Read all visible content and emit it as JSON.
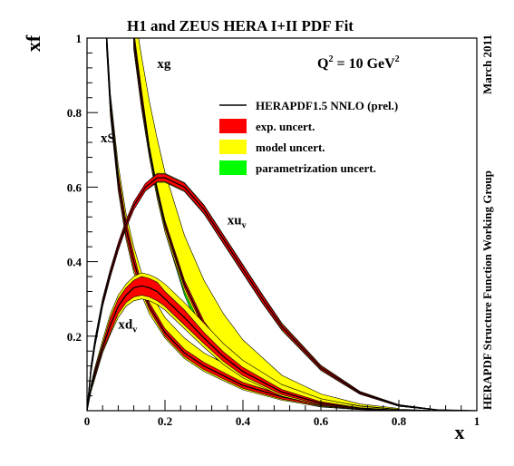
{
  "chart_data": {
    "type": "line",
    "title": "H1 and ZEUS HERA I+II PDF Fit",
    "xlabel": "x",
    "ylabel": "xf",
    "xlim": [
      0,
      1
    ],
    "ylim": [
      0,
      1
    ],
    "x_ticks": [
      "0",
      "0.2",
      "0.4",
      "0.6",
      "0.8",
      "1"
    ],
    "y_ticks": [
      "0.2",
      "0.4",
      "0.6",
      "0.8",
      "1"
    ],
    "grid": false,
    "legend_placement": "top-right",
    "annotations": {
      "q2_main": "Q",
      "q2_sup": "2",
      "q2_rest": " = 10 GeV",
      "q2_sup2": "2",
      "date": "March 2011",
      "group": "HERAPDF Structure Function Working Group"
    },
    "legend": [
      {
        "label": "HERAPDF1.5 NNLO (prel.)",
        "kind": "line",
        "color": "#000000"
      },
      {
        "label": "exp. uncert.",
        "kind": "box",
        "color": "#ff0000"
      },
      {
        "label": "model uncert.",
        "kind": "box",
        "color": "#ffff00"
      },
      {
        "label": "parametrization uncert.",
        "kind": "box",
        "color": "#00ff00"
      }
    ],
    "colors": {
      "exp": "#ff0000",
      "model": "#ffff00",
      "param": "#00ff00",
      "central": "#000000"
    },
    "series": [
      {
        "label_main": "xg",
        "label_sub": "",
        "x": [
          0.12,
          0.14,
          0.16,
          0.18,
          0.2,
          0.25,
          0.3,
          0.35,
          0.4,
          0.5,
          0.6,
          0.7,
          0.8
        ],
        "central": [
          1.0,
          0.84,
          0.7,
          0.59,
          0.5,
          0.34,
          0.23,
          0.16,
          0.11,
          0.05,
          0.02,
          0.007,
          0.002
        ],
        "exp_lo": [
          0.98,
          0.82,
          0.69,
          0.58,
          0.49,
          0.33,
          0.22,
          0.15,
          0.1,
          0.045,
          0.017,
          0.005,
          0.001
        ],
        "exp_hi": [
          1.02,
          0.86,
          0.71,
          0.6,
          0.51,
          0.35,
          0.24,
          0.17,
          0.12,
          0.055,
          0.023,
          0.009,
          0.003
        ],
        "mod_lo": [
          0.97,
          0.81,
          0.68,
          0.57,
          0.48,
          0.32,
          0.21,
          0.14,
          0.095,
          0.042,
          0.015,
          0.004,
          0.001
        ],
        "mod_hi": [
          1.08,
          0.95,
          0.83,
          0.73,
          0.64,
          0.47,
          0.35,
          0.26,
          0.19,
          0.095,
          0.045,
          0.018,
          0.006
        ],
        "par_lo": [
          0.97,
          0.81,
          0.68,
          0.57,
          0.48,
          0.31,
          0.19,
          0.11,
          0.07,
          0.03,
          0.01,
          0.003,
          0.001
        ],
        "par_hi": [
          1.02,
          0.86,
          0.71,
          0.6,
          0.51,
          0.35,
          0.24,
          0.17,
          0.12,
          0.055,
          0.023,
          0.009,
          0.003
        ],
        "label_pos": [
          0.18,
          0.92
        ]
      },
      {
        "label_main": "xS",
        "label_sub": "",
        "x": [
          0.05,
          0.06,
          0.08,
          0.1,
          0.12,
          0.14,
          0.16,
          0.2,
          0.25,
          0.3,
          0.4,
          0.5,
          0.6,
          0.7,
          0.8,
          0.88
        ],
        "central": [
          1.0,
          0.82,
          0.62,
          0.49,
          0.4,
          0.33,
          0.28,
          0.21,
          0.155,
          0.12,
          0.068,
          0.037,
          0.017,
          0.006,
          0.0015,
          0.0003
        ],
        "exp_lo": [
          0.98,
          0.8,
          0.6,
          0.47,
          0.38,
          0.32,
          0.27,
          0.2,
          0.145,
          0.11,
          0.06,
          0.031,
          0.013,
          0.004,
          0.0008,
          0.0001
        ],
        "exp_hi": [
          1.02,
          0.84,
          0.64,
          0.51,
          0.42,
          0.34,
          0.29,
          0.22,
          0.165,
          0.13,
          0.076,
          0.043,
          0.021,
          0.008,
          0.0025,
          0.0006
        ],
        "mod_lo": [
          0.97,
          0.79,
          0.59,
          0.46,
          0.37,
          0.31,
          0.26,
          0.195,
          0.14,
          0.105,
          0.056,
          0.028,
          0.011,
          0.003,
          0.0006,
          0.0001
        ],
        "mod_hi": [
          1.03,
          0.85,
          0.66,
          0.53,
          0.44,
          0.37,
          0.32,
          0.25,
          0.195,
          0.155,
          0.1,
          0.06,
          0.031,
          0.013,
          0.004,
          0.001
        ],
        "par_lo": [
          0.98,
          0.8,
          0.6,
          0.47,
          0.38,
          0.32,
          0.27,
          0.2,
          0.145,
          0.11,
          0.06,
          0.031,
          0.013,
          0.004,
          0.0008,
          0.0001
        ],
        "par_hi": [
          1.02,
          0.84,
          0.64,
          0.51,
          0.42,
          0.34,
          0.29,
          0.22,
          0.165,
          0.13,
          0.076,
          0.043,
          0.021,
          0.008,
          0.0025,
          0.0006
        ],
        "label_pos": [
          0.035,
          0.72
        ]
      },
      {
        "label_main": "xu",
        "label_sub": "v",
        "x": [
          0.0,
          0.01,
          0.02,
          0.04,
          0.06,
          0.08,
          0.1,
          0.12,
          0.15,
          0.18,
          0.2,
          0.25,
          0.3,
          0.35,
          0.4,
          0.45,
          0.5,
          0.6,
          0.7,
          0.8,
          0.9,
          1.0
        ],
        "central": [
          0.0,
          0.11,
          0.18,
          0.29,
          0.37,
          0.44,
          0.5,
          0.55,
          0.6,
          0.625,
          0.625,
          0.6,
          0.54,
          0.46,
          0.38,
          0.3,
          0.225,
          0.115,
          0.048,
          0.014,
          0.002,
          0.0
        ],
        "exp_lo": [
          0.0,
          0.1,
          0.17,
          0.28,
          0.36,
          0.43,
          0.49,
          0.54,
          0.59,
          0.615,
          0.615,
          0.59,
          0.53,
          0.45,
          0.37,
          0.29,
          0.218,
          0.11,
          0.045,
          0.012,
          0.0015,
          0.0
        ],
        "exp_hi": [
          0.0,
          0.12,
          0.19,
          0.3,
          0.38,
          0.45,
          0.51,
          0.56,
          0.61,
          0.635,
          0.635,
          0.61,
          0.55,
          0.47,
          0.39,
          0.31,
          0.232,
          0.12,
          0.051,
          0.016,
          0.0025,
          0.0
        ],
        "mod_lo": [
          0.0,
          0.1,
          0.17,
          0.28,
          0.36,
          0.43,
          0.49,
          0.54,
          0.59,
          0.613,
          0.613,
          0.588,
          0.528,
          0.448,
          0.368,
          0.288,
          0.215,
          0.108,
          0.044,
          0.012,
          0.0015,
          0.0
        ],
        "mod_hi": [
          0.0,
          0.12,
          0.19,
          0.3,
          0.38,
          0.45,
          0.51,
          0.56,
          0.61,
          0.637,
          0.637,
          0.612,
          0.552,
          0.472,
          0.392,
          0.312,
          0.235,
          0.122,
          0.052,
          0.016,
          0.0025,
          0.0
        ],
        "par_lo": [
          0.0,
          0.1,
          0.17,
          0.28,
          0.36,
          0.43,
          0.49,
          0.54,
          0.59,
          0.615,
          0.615,
          0.59,
          0.53,
          0.45,
          0.37,
          0.29,
          0.218,
          0.11,
          0.045,
          0.012,
          0.0015,
          0.0
        ],
        "par_hi": [
          0.0,
          0.12,
          0.19,
          0.3,
          0.38,
          0.45,
          0.51,
          0.56,
          0.61,
          0.635,
          0.635,
          0.61,
          0.55,
          0.47,
          0.39,
          0.31,
          0.232,
          0.12,
          0.051,
          0.016,
          0.0025,
          0.0
        ],
        "label_pos": [
          0.36,
          0.5
        ]
      },
      {
        "label_main": "xd",
        "label_sub": "v",
        "x": [
          0.0,
          0.01,
          0.02,
          0.04,
          0.06,
          0.08,
          0.1,
          0.12,
          0.14,
          0.16,
          0.18,
          0.2,
          0.25,
          0.3,
          0.35,
          0.4,
          0.5,
          0.6,
          0.7,
          0.8
        ],
        "central": [
          0.0,
          0.06,
          0.1,
          0.17,
          0.23,
          0.28,
          0.31,
          0.33,
          0.335,
          0.33,
          0.32,
          0.3,
          0.25,
          0.195,
          0.145,
          0.105,
          0.05,
          0.02,
          0.006,
          0.001
        ],
        "exp_lo": [
          0.0,
          0.055,
          0.09,
          0.16,
          0.21,
          0.26,
          0.29,
          0.305,
          0.31,
          0.305,
          0.295,
          0.28,
          0.23,
          0.18,
          0.132,
          0.094,
          0.043,
          0.016,
          0.004,
          0.0005
        ],
        "exp_hi": [
          0.0,
          0.065,
          0.11,
          0.18,
          0.25,
          0.3,
          0.33,
          0.35,
          0.36,
          0.355,
          0.345,
          0.32,
          0.27,
          0.21,
          0.158,
          0.116,
          0.057,
          0.024,
          0.008,
          0.0015
        ],
        "mod_lo": [
          0.0,
          0.05,
          0.085,
          0.155,
          0.205,
          0.25,
          0.28,
          0.295,
          0.3,
          0.295,
          0.285,
          0.27,
          0.22,
          0.17,
          0.124,
          0.088,
          0.039,
          0.014,
          0.0035,
          0.0004
        ],
        "mod_hi": [
          0.0,
          0.07,
          0.115,
          0.19,
          0.26,
          0.31,
          0.34,
          0.36,
          0.37,
          0.365,
          0.355,
          0.34,
          0.29,
          0.235,
          0.18,
          0.135,
          0.07,
          0.032,
          0.012,
          0.003
        ],
        "par_lo": [
          0.0,
          0.055,
          0.09,
          0.16,
          0.21,
          0.26,
          0.29,
          0.305,
          0.31,
          0.305,
          0.295,
          0.28,
          0.23,
          0.18,
          0.132,
          0.094,
          0.043,
          0.016,
          0.004,
          0.0005
        ],
        "par_hi": [
          0.0,
          0.065,
          0.11,
          0.18,
          0.25,
          0.3,
          0.33,
          0.35,
          0.36,
          0.355,
          0.345,
          0.32,
          0.27,
          0.21,
          0.158,
          0.116,
          0.057,
          0.024,
          0.008,
          0.0015
        ],
        "label_pos": [
          0.08,
          0.22
        ]
      }
    ]
  }
}
